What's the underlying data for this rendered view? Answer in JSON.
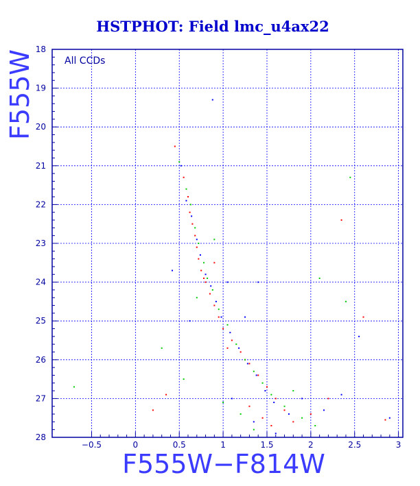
{
  "chart_data": {
    "type": "scatter",
    "title": "HSTPHOT: Field lmc_u4ax22",
    "xlabel": "F555W−F814W",
    "ylabel": "F555W",
    "annotation": "All CCDs",
    "xlim": [
      -0.95,
      3.05
    ],
    "ylim": [
      28,
      18
    ],
    "y_inverted": true,
    "grid": true,
    "x_ticks": [
      -0.5,
      0,
      0.5,
      1,
      1.5,
      2,
      2.5,
      3
    ],
    "x_tick_labels": [
      "−0.5",
      "0",
      "0.5",
      "1",
      "1.5",
      "2",
      "2.5",
      "3"
    ],
    "y_ticks": [
      18,
      19,
      20,
      21,
      22,
      23,
      24,
      25,
      26,
      27,
      28
    ],
    "y_tick_labels": [
      "18",
      "19",
      "20",
      "21",
      "22",
      "23",
      "24",
      "25",
      "26",
      "27",
      "28"
    ],
    "series": [
      {
        "color": "#ff0000",
        "points": [
          [
            0.45,
            20.5
          ],
          [
            0.55,
            21.3
          ],
          [
            0.6,
            21.8
          ],
          [
            0.62,
            22.2
          ],
          [
            0.65,
            22.5
          ],
          [
            0.68,
            22.8
          ],
          [
            0.7,
            23.1
          ],
          [
            0.72,
            23.4
          ],
          [
            0.75,
            23.7
          ],
          [
            0.8,
            24.0
          ],
          [
            0.85,
            24.3
          ],
          [
            0.9,
            24.6
          ],
          [
            0.95,
            24.9
          ],
          [
            1.0,
            25.2
          ],
          [
            1.1,
            25.5
          ],
          [
            1.2,
            25.8
          ],
          [
            1.3,
            26.1
          ],
          [
            1.4,
            26.4
          ],
          [
            1.5,
            26.7
          ],
          [
            1.6,
            27.0
          ],
          [
            1.7,
            27.3
          ],
          [
            1.45,
            27.5
          ],
          [
            1.3,
            27.2
          ],
          [
            1.8,
            27.6
          ],
          [
            2.0,
            27.4
          ],
          [
            2.35,
            22.4
          ],
          [
            2.6,
            24.9
          ],
          [
            2.85,
            27.55
          ],
          [
            0.35,
            26.9
          ],
          [
            0.2,
            27.3
          ],
          [
            0.9,
            23.5
          ],
          [
            1.25,
            26.0
          ],
          [
            1.55,
            27.7
          ],
          [
            1.05,
            25.7
          ],
          [
            0.78,
            23.9
          ],
          [
            2.2,
            27.0
          ]
        ]
      },
      {
        "color": "#00cc00",
        "points": [
          [
            0.5,
            20.9
          ],
          [
            0.58,
            21.6
          ],
          [
            0.63,
            22.0
          ],
          [
            0.68,
            22.6
          ],
          [
            0.72,
            23.0
          ],
          [
            0.78,
            23.5
          ],
          [
            0.82,
            23.9
          ],
          [
            0.88,
            24.2
          ],
          [
            0.95,
            24.7
          ],
          [
            1.05,
            25.1
          ],
          [
            1.15,
            25.6
          ],
          [
            1.25,
            26.0
          ],
          [
            1.35,
            26.3
          ],
          [
            1.45,
            26.6
          ],
          [
            1.55,
            26.9
          ],
          [
            1.7,
            27.2
          ],
          [
            1.9,
            27.5
          ],
          [
            1.2,
            27.4
          ],
          [
            1.0,
            27.1
          ],
          [
            2.45,
            21.3
          ],
          [
            2.4,
            24.5
          ],
          [
            -0.7,
            26.7
          ],
          [
            0.3,
            25.7
          ],
          [
            0.55,
            26.5
          ],
          [
            1.8,
            26.8
          ],
          [
            2.05,
            27.7
          ],
          [
            0.9,
            22.9
          ],
          [
            1.35,
            27.8
          ],
          [
            0.7,
            24.4
          ],
          [
            2.1,
            23.9
          ]
        ]
      },
      {
        "color": "#0000ff",
        "points": [
          [
            0.52,
            21.0
          ],
          [
            0.58,
            21.9
          ],
          [
            0.64,
            22.3
          ],
          [
            0.7,
            22.9
          ],
          [
            0.74,
            23.3
          ],
          [
            0.8,
            23.8
          ],
          [
            0.86,
            24.1
          ],
          [
            0.92,
            24.5
          ],
          [
            0.98,
            24.9
          ],
          [
            1.08,
            25.3
          ],
          [
            1.18,
            25.7
          ],
          [
            1.28,
            26.1
          ],
          [
            1.38,
            26.4
          ],
          [
            1.48,
            26.8
          ],
          [
            1.58,
            27.1
          ],
          [
            1.75,
            27.4
          ],
          [
            1.35,
            27.6
          ],
          [
            1.1,
            27.0
          ],
          [
            0.88,
            19.3
          ],
          [
            1.25,
            24.9
          ],
          [
            2.55,
            25.4
          ],
          [
            2.9,
            27.5
          ],
          [
            2.35,
            26.9
          ],
          [
            0.42,
            23.7
          ],
          [
            1.4,
            24.0
          ],
          [
            1.6,
            27.9
          ],
          [
            0.62,
            25.0
          ],
          [
            2.15,
            27.3
          ],
          [
            1.9,
            27.0
          ],
          [
            1.05,
            24.0
          ]
        ]
      }
    ]
  }
}
